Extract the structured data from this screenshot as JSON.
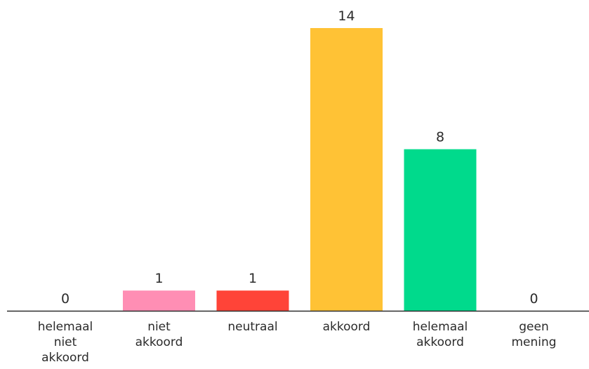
{
  "chart_data": {
    "type": "bar",
    "categories": [
      [
        "helemaal",
        "niet",
        "akkoord"
      ],
      [
        "niet",
        "akkoord"
      ],
      [
        "neutraal"
      ],
      [
        "akkoord"
      ],
      [
        "helemaal",
        "akkoord"
      ],
      [
        "geen",
        "mening"
      ]
    ],
    "values": [
      0,
      1,
      1,
      14,
      8,
      0
    ],
    "value_labels": [
      "0",
      "1",
      "1",
      "14",
      "8",
      "0"
    ],
    "colors": [
      "#ff8eb4",
      "#ff8eb4",
      "#ff4438",
      "#ffc235",
      "#00da8c",
      "#c7c7c7"
    ],
    "title": "",
    "xlabel": "",
    "ylabel": "",
    "ylim": [
      0,
      14
    ],
    "grid": false,
    "data_labels": "above-bars"
  }
}
